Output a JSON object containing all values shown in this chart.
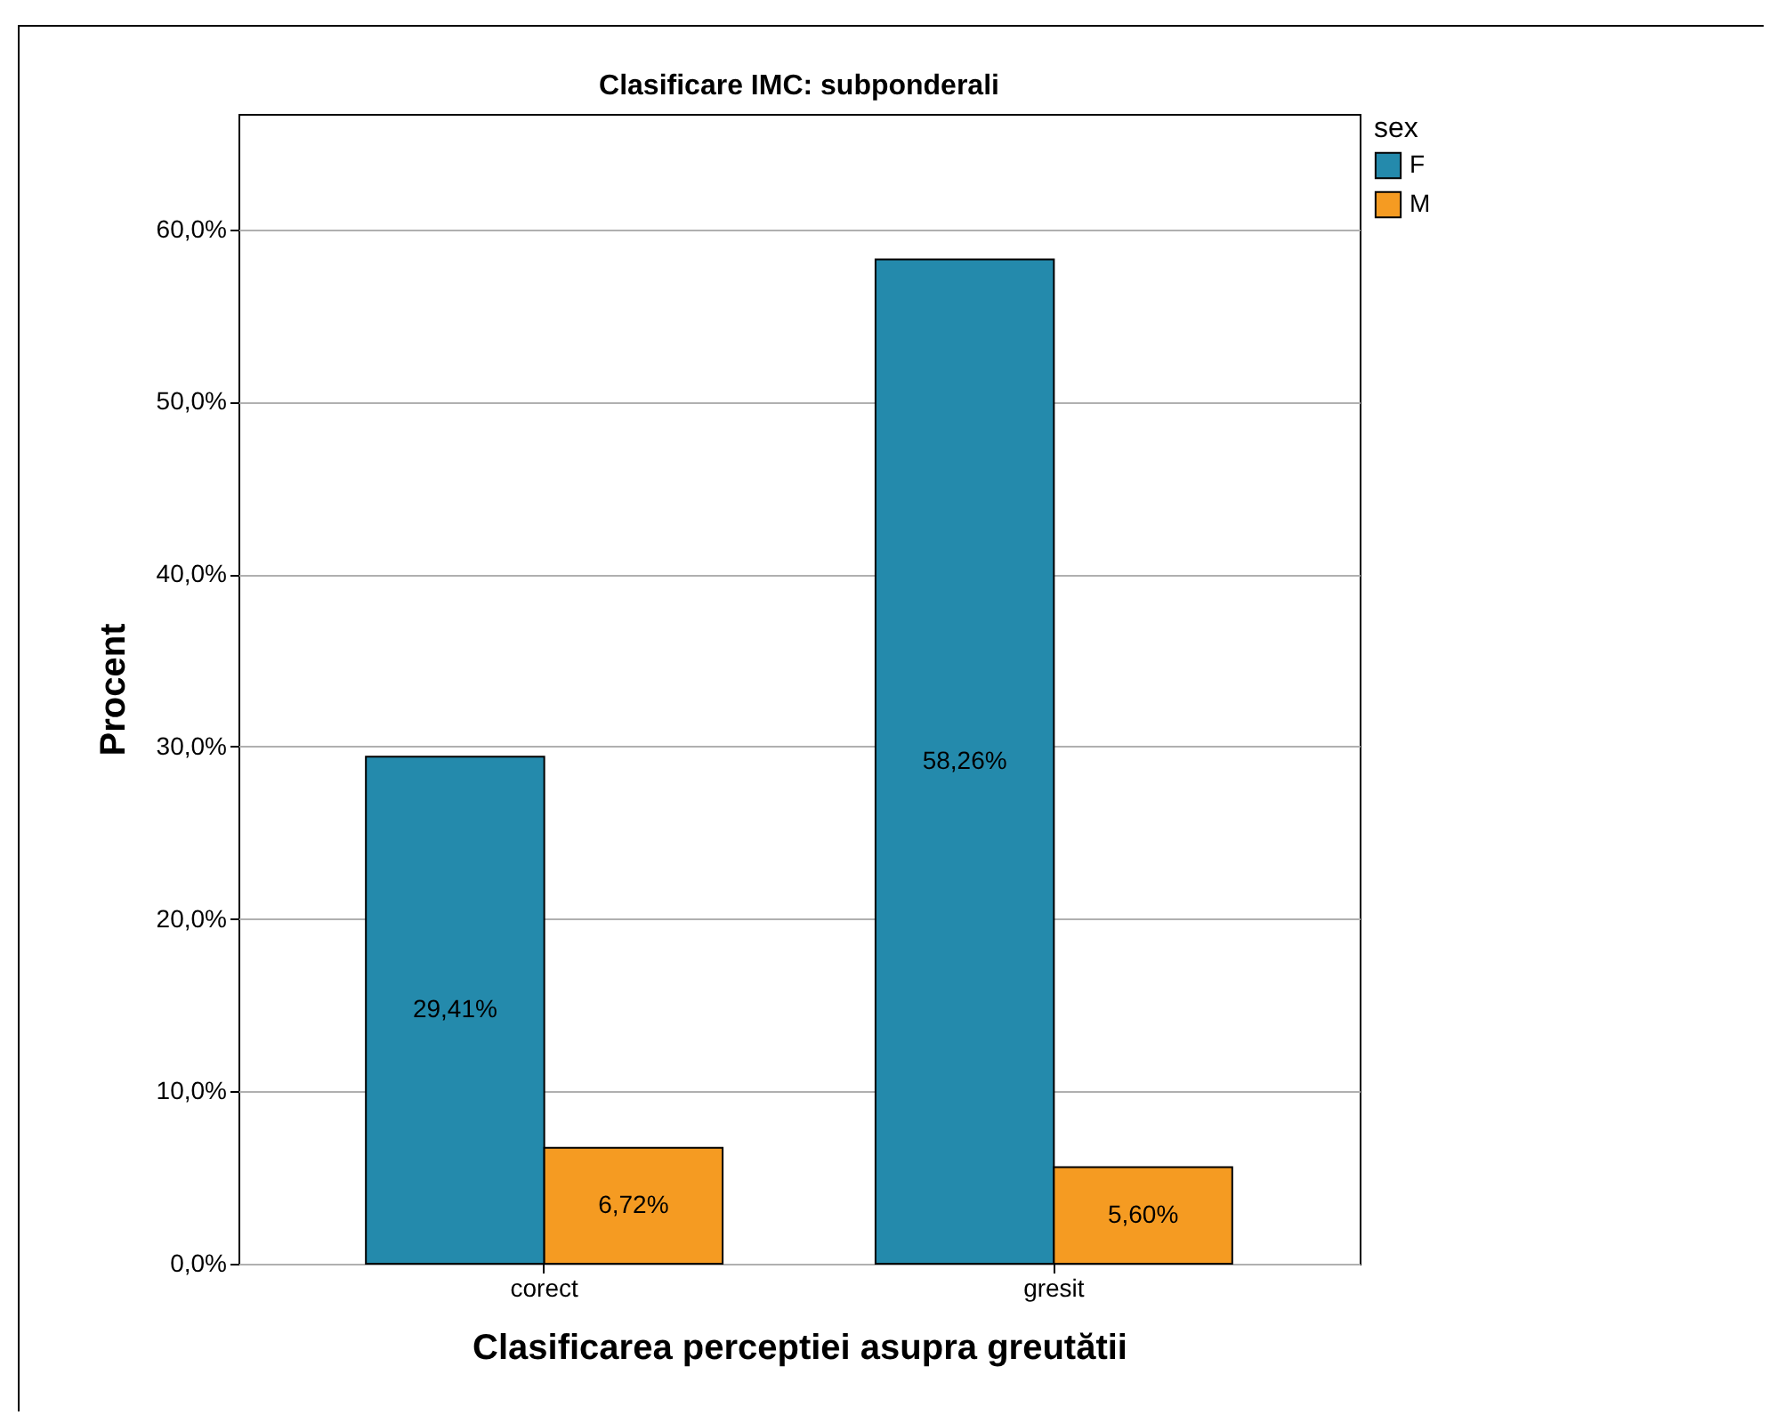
{
  "chart_data": {
    "type": "bar",
    "title": "Clasificare IMC: subponderali",
    "xlabel": "Clasificarea perceptiei asupra greutătii",
    "ylabel": "Procent",
    "legend_title": "sex",
    "categories": [
      "corect",
      "gresit"
    ],
    "series": [
      {
        "name": "F",
        "color": "#248aac",
        "values": [
          29.41,
          58.26
        ],
        "value_labels": [
          "29,41%",
          "58,26%"
        ]
      },
      {
        "name": "M",
        "color": "#f59b22",
        "values": [
          6.72,
          5.6
        ],
        "value_labels": [
          "6,72%",
          "5,60%"
        ]
      }
    ],
    "ylim": [
      0,
      66.7
    ],
    "yticks": [
      {
        "value": 0,
        "label": "0,0%"
      },
      {
        "value": 10,
        "label": "10,0%"
      },
      {
        "value": 20,
        "label": "20,0%"
      },
      {
        "value": 30,
        "label": "30,0%"
      },
      {
        "value": 40,
        "label": "40,0%"
      },
      {
        "value": 50,
        "label": "50,0%"
      },
      {
        "value": 60,
        "label": "60,0%"
      }
    ],
    "grid": "y",
    "legend": "top right"
  }
}
